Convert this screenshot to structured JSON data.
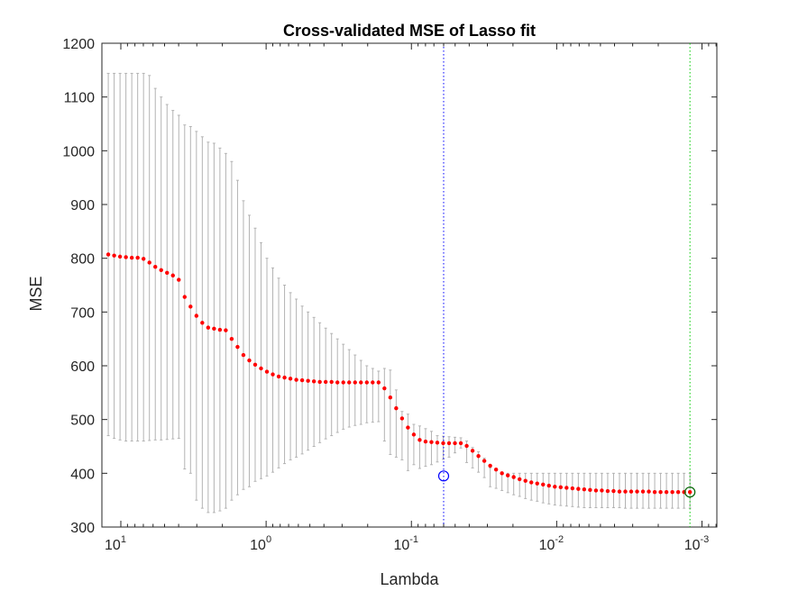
{
  "chart_data": {
    "type": "scatter",
    "title": "Cross-validated MSE of Lasso fit",
    "xlabel": "Lambda",
    "ylabel": "MSE",
    "xscale": "log",
    "xaxis_direction": "reversed",
    "xlim": [
      13.5,
      0.00079
    ],
    "ylim": [
      300,
      1200
    ],
    "yticks": [
      300,
      400,
      500,
      600,
      700,
      800,
      900,
      1000,
      1100,
      1200
    ],
    "xticks": [
      {
        "value": 10,
        "base": "10",
        "exp": "1"
      },
      {
        "value": 1,
        "base": "10",
        "exp": "0"
      },
      {
        "value": 0.1,
        "base": "10",
        "exp": "-1"
      },
      {
        "value": 0.01,
        "base": "10",
        "exp": "-2"
      },
      {
        "value": 0.001,
        "base": "10",
        "exp": "-3"
      }
    ],
    "grid": false,
    "legend": "none",
    "colors": {
      "points": "#ff0000",
      "errorbars": "#b3b3b3",
      "axes": "#262626",
      "lambda_min_line": "#00cc00",
      "lambda_1se_line": "#0000ff",
      "lambda_min_marker": "#006400",
      "lambda_1se_marker": "#0000ff"
    },
    "vertical_lines": [
      {
        "lambda": 0.06,
        "style": "dotted",
        "color": "#0000ff"
      },
      {
        "lambda": 0.00121,
        "style": "dotted",
        "color": "#00cc00"
      }
    ],
    "circle_markers": [
      {
        "lambda": 0.06,
        "mse": 395,
        "color": "#0000ff"
      },
      {
        "lambda": 0.00121,
        "mse": 365,
        "color": "#006400"
      }
    ],
    "series": [
      {
        "lambda_max": 12.2,
        "lambda_min": 0.00121,
        "count": 100,
        "mse": [
          807,
          805,
          803,
          802,
          801,
          801,
          799,
          792,
          784,
          778,
          773,
          768,
          760,
          728,
          710,
          693,
          680,
          671,
          669,
          667,
          666,
          650,
          635,
          620,
          610,
          602,
          595,
          589,
          584,
          580,
          578,
          576,
          574,
          573,
          572,
          571,
          570,
          570,
          570,
          569,
          569,
          569,
          569,
          569,
          569,
          569,
          569,
          558,
          541,
          521,
          502,
          485,
          472,
          462,
          459,
          458,
          457,
          456,
          456,
          456,
          456,
          451,
          442,
          432,
          423,
          414,
          407,
          400,
          396,
          393,
          389,
          386,
          383,
          381,
          379,
          377,
          375,
          374,
          373,
          372,
          371,
          370,
          369,
          368,
          368,
          367,
          367,
          366,
          366,
          366,
          366,
          366,
          366,
          365,
          365,
          365,
          365,
          365,
          365,
          365
        ],
        "lower": [
          470,
          465,
          462,
          460,
          460,
          460,
          460,
          461,
          462,
          462,
          463,
          464,
          465,
          408,
          400,
          350,
          335,
          327,
          327,
          330,
          335,
          350,
          360,
          370,
          375,
          385,
          390,
          395,
          402,
          410,
          418,
          425,
          430,
          436,
          443,
          450,
          457,
          464,
          470,
          476,
          482,
          486,
          489,
          491,
          494,
          495,
          496,
          460,
          435,
          430,
          425,
          405,
          416,
          409,
          413,
          416,
          421,
          426,
          430,
          438,
          447,
          420,
          410,
          402,
          392,
          375,
          372,
          368,
          364,
          360,
          357,
          353,
          350,
          348,
          345,
          343,
          341,
          340,
          339,
          338,
          337,
          336,
          336,
          336,
          336,
          336,
          336,
          336,
          335,
          335,
          335,
          335,
          335,
          335,
          335,
          335,
          335,
          335,
          335,
          335
        ],
        "upper": [
          1144,
          1144,
          1144,
          1144,
          1144,
          1144,
          1144,
          1140,
          1116,
          1100,
          1086,
          1075,
          1066,
          1048,
          1045,
          1036,
          1026,
          1016,
          1014,
          1005,
          995,
          980,
          945,
          907,
          880,
          856,
          829,
          800,
          782,
          763,
          750,
          736,
          724,
          711,
          700,
          690,
          680,
          670,
          660,
          650,
          640,
          630,
          620,
          610,
          600,
          595,
          590,
          595,
          592,
          555,
          515,
          510,
          491,
          488,
          483,
          478,
          470,
          469,
          468,
          467,
          466,
          460,
          448,
          440,
          428,
          410,
          405,
          400,
          400,
          400,
          400,
          400,
          400,
          400,
          400,
          400,
          400,
          400,
          400,
          400,
          400,
          400,
          400,
          400,
          400,
          400,
          400,
          400,
          400,
          400,
          400,
          400,
          400,
          400,
          400,
          400,
          400,
          400,
          400,
          400
        ]
      }
    ]
  }
}
